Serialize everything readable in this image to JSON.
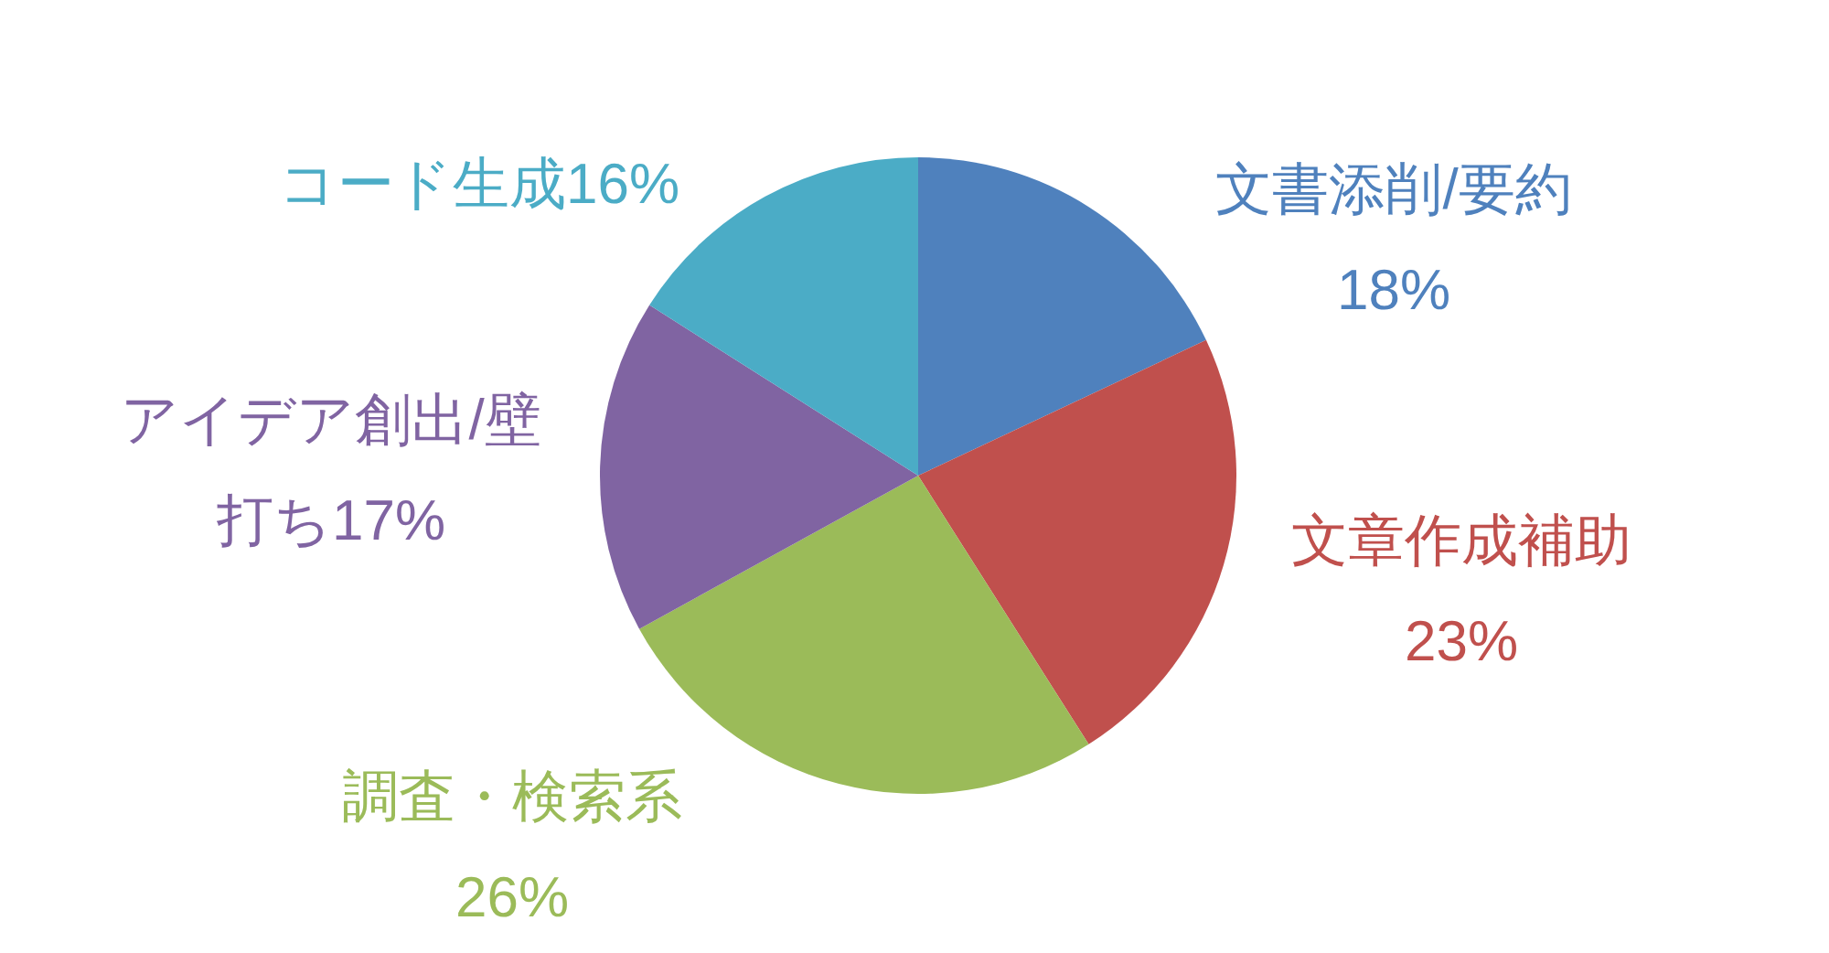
{
  "chart_data": {
    "type": "pie",
    "categories": [
      "文書添削/要約",
      "文章作成補助",
      "調査・検索系",
      "アイデア創出/壁打ち",
      "コード生成"
    ],
    "values": [
      18,
      23,
      26,
      17,
      16
    ],
    "value_labels": [
      "18%",
      "23%",
      "26%",
      "17%",
      "16%"
    ],
    "colors": [
      "#4f81bd",
      "#c0504d",
      "#9bbb59",
      "#8064a2",
      "#4bacc6"
    ]
  }
}
